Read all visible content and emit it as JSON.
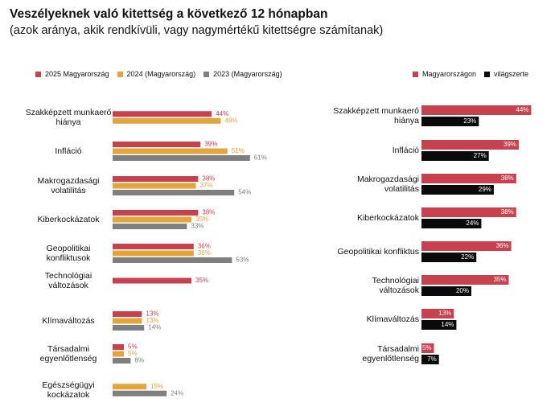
{
  "header": {
    "title": "Veszélyeknek való kitettség a következő 12 hónapban",
    "subtitle": "(azok aránya, akik rendkívüli, vagy nagymértékű kitettségre számítanak)"
  },
  "colors": {
    "red": "#c8414e",
    "orange": "#e3a43b",
    "gray": "#7f7f7f",
    "black": "#0a0a0a"
  },
  "chart_data": [
    {
      "type": "bar",
      "orientation": "horizontal",
      "legend_position": "top-left",
      "unit": "%",
      "categories": [
        [
          "Szakképzett munkaerő",
          "hiánya"
        ],
        [
          "Infláció"
        ],
        [
          "Makrogazdasági",
          "volatilitás"
        ],
        [
          "Kiberkockázatok"
        ],
        [
          "Geopolitikai",
          "konfliktusok"
        ],
        [
          "Technológiai",
          "változások"
        ],
        [
          "Klímaváltozás"
        ],
        [
          "Társadalmi",
          "egyenlőtlenség"
        ],
        [
          "Egészségügyi",
          "kockázatok"
        ]
      ],
      "series": [
        {
          "name": "2025 Magyarország",
          "color": "#c8414e",
          "values": [
            44,
            39,
            38,
            38,
            36,
            35,
            13,
            5,
            null
          ]
        },
        {
          "name": "2024 (Magyarország)",
          "color": "#e3a43b",
          "values": [
            48,
            51,
            37,
            35,
            36,
            null,
            13,
            5,
            15
          ]
        },
        {
          "name": "2023 (Magyarország)",
          "color": "#7f7f7f",
          "values": [
            null,
            61,
            54,
            33,
            53,
            null,
            14,
            8,
            24
          ]
        }
      ]
    },
    {
      "type": "bar",
      "orientation": "horizontal",
      "legend_position": "top-right",
      "unit": "%",
      "categories": [
        [
          "Szakképzett munkaerő",
          "hiánya"
        ],
        [
          "Infláció"
        ],
        [
          "Makrogazdasági",
          "volatilitás"
        ],
        [
          "Kiberkockázatok"
        ],
        [
          "Geopolitikai konfliktus"
        ],
        [
          "Technológiai",
          "változások"
        ],
        [
          "Klímaváltozás"
        ],
        [
          "Társadalmi",
          "egyenlőtlenség"
        ]
      ],
      "series": [
        {
          "name": "Magyarországon",
          "color": "#c8414e",
          "values": [
            44,
            39,
            38,
            38,
            36,
            35,
            13,
            5
          ]
        },
        {
          "name": "világszerte",
          "color": "#0a0a0a",
          "values": [
            23,
            27,
            29,
            24,
            22,
            20,
            14,
            7
          ]
        }
      ]
    }
  ]
}
